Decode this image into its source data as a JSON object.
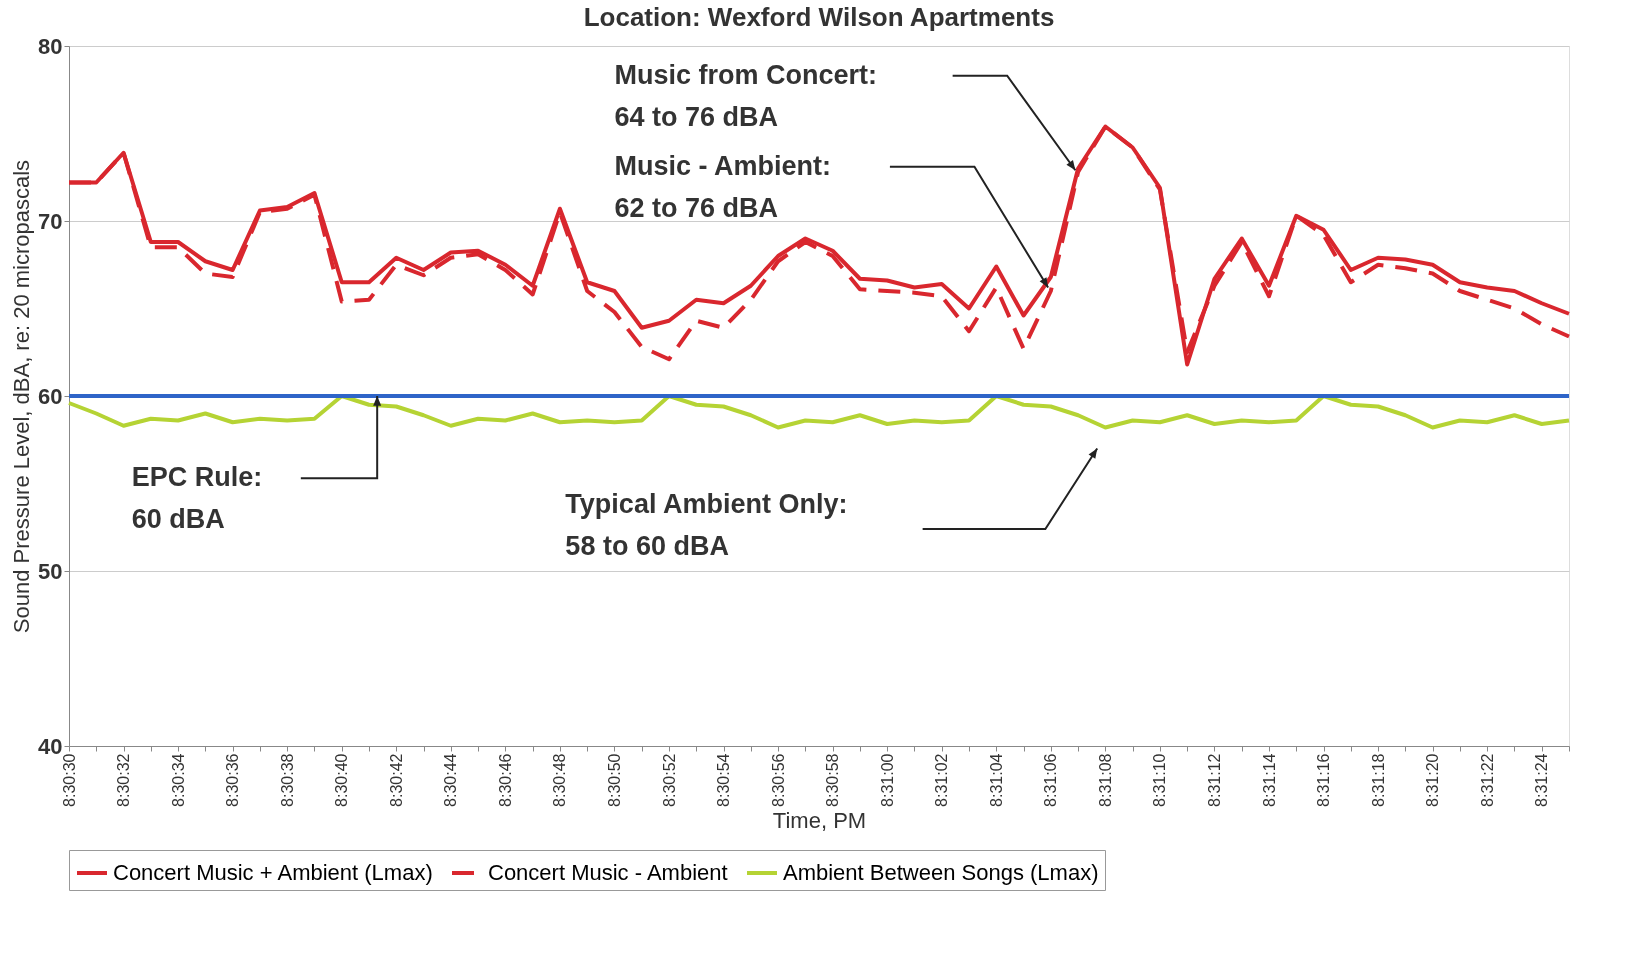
{
  "chart_data": {
    "type": "line",
    "title": "Location: Wexford Wilson Apartments",
    "xlabel": "Time, PM",
    "ylabel": "Sound Pressure Level, dBA, re: 20 micropascals",
    "categories": [
      "8:30:30",
      null,
      "8:30:32",
      null,
      "8:30:34",
      null,
      "8:30:36",
      null,
      "8:30:38",
      null,
      "8:30:40",
      null,
      "8:30:42",
      null,
      "8:30:44",
      null,
      "8:30:46",
      null,
      "8:30:48",
      null,
      "8:30:50",
      null,
      "8:30:52",
      null,
      "8:30:54",
      null,
      "8:30:56",
      null,
      "8:30:58",
      null,
      "8:31:00",
      null,
      "8:31:02",
      null,
      "8:31:04",
      null,
      "8:31:06",
      null,
      "8:31:08",
      null,
      "8:31:10",
      null,
      "8:31:12",
      null,
      "8:31:14",
      null,
      "8:31:16",
      null,
      "8:31:18",
      null,
      "8:31:20",
      null,
      "8:31:22",
      null,
      "8:31:24",
      null
    ],
    "series": [
      {
        "name": "Concert Music + Ambient (Lmax)",
        "color": "#d9272e",
        "line_style": "solid",
        "values": [
          72.2,
          72.2,
          73.9,
          68.8,
          68.8,
          67.7,
          67.2,
          70.6,
          70.8,
          71.6,
          66.5,
          66.5,
          67.9,
          67.2,
          68.2,
          68.3,
          67.5,
          66.3,
          70.7,
          66.5,
          66.0,
          63.9,
          64.3,
          65.5,
          65.3,
          66.3,
          68.0,
          69.0,
          68.3,
          66.7,
          66.6,
          66.2,
          66.4,
          65.0,
          67.4,
          64.6,
          66.8,
          73.0,
          75.4,
          74.2,
          71.9,
          61.8,
          66.7,
          69.0,
          66.3,
          70.3,
          69.5,
          67.2,
          67.9,
          67.8,
          67.5,
          66.5,
          66.2,
          66.0,
          65.3,
          64.7
        ]
      },
      {
        "name": "Concert Music - Ambient",
        "color": "#d9272e",
        "line_style": "dashed",
        "values": [
          72.2,
          72.2,
          73.9,
          68.5,
          68.5,
          67.0,
          66.8,
          70.5,
          70.7,
          71.5,
          65.4,
          65.5,
          67.5,
          66.9,
          67.9,
          68.1,
          67.2,
          65.8,
          70.5,
          66.0,
          64.8,
          62.8,
          62.1,
          64.3,
          63.9,
          65.5,
          67.7,
          68.8,
          68.0,
          66.1,
          66.0,
          65.9,
          65.7,
          63.7,
          66.2,
          62.7,
          66.0,
          72.8,
          75.4,
          74.2,
          71.8,
          62.5,
          66.3,
          68.8,
          65.7,
          70.3,
          69.2,
          66.5,
          67.5,
          67.3,
          67.0,
          66.0,
          65.5,
          65.0,
          64.1,
          63.4
        ]
      },
      {
        "name": "Ambient Between Songs (Lmax)",
        "color": "#b5d334",
        "line_style": "solid",
        "values": [
          59.6,
          59.0,
          58.3,
          58.7,
          58.6,
          59.0,
          58.5,
          58.7,
          58.6,
          58.7,
          60.0,
          59.5,
          59.4,
          58.9,
          58.3,
          58.7,
          58.6,
          59.0,
          58.5,
          58.6,
          58.5,
          58.6,
          60.0,
          59.5,
          59.4,
          58.9,
          58.2,
          58.6,
          58.5,
          58.9,
          58.4,
          58.6,
          58.5,
          58.6,
          60.0,
          59.5,
          59.4,
          58.9,
          58.2,
          58.6,
          58.5,
          58.9,
          58.4,
          58.6,
          58.5,
          58.6,
          60.0,
          59.5,
          59.4,
          58.9,
          58.2,
          58.6,
          58.5,
          58.9,
          58.4,
          58.6
        ]
      }
    ],
    "ref_lines": [
      {
        "axis": "y",
        "value": 60,
        "color": "#2e64c8",
        "line_style": "solid"
      }
    ],
    "annotations": [
      "Music from Concert:\n64 to 76 dBA",
      "Music - Ambient:\n62 to 76 dBA",
      "EPC Rule:\n60 dBA",
      "Typical Ambient Only:\n58 to 60 dBA"
    ],
    "ylim": [
      40,
      80
    ],
    "yticks": [
      40,
      50,
      60,
      70,
      80
    ],
    "grid": "y",
    "legend": "bottom",
    "marker": "none"
  }
}
